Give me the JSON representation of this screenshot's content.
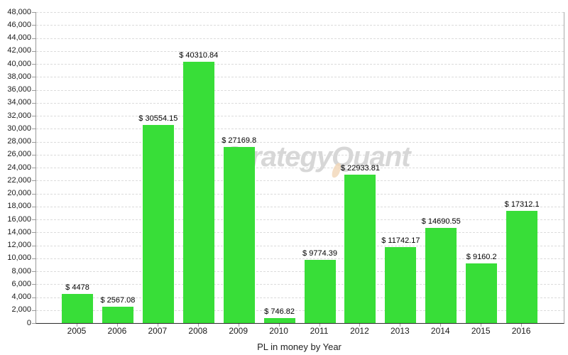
{
  "chart_data": {
    "type": "bar",
    "title": "",
    "xlabel": "PL in money by Year",
    "ylabel": "",
    "categories": [
      "2005",
      "2006",
      "2007",
      "2008",
      "2009",
      "2010",
      "2011",
      "2012",
      "2013",
      "2014",
      "2015",
      "2016"
    ],
    "values": [
      4478,
      2567.08,
      30554.15,
      40310.84,
      27169.8,
      746.82,
      9774.39,
      22933.81,
      11742.17,
      14690.55,
      9160.2,
      17312.1
    ],
    "bar_labels": [
      "$ 4478",
      "$ 2567.08",
      "$ 30554.15",
      "$ 40310.84",
      "$ 27169.8",
      "$ 746.82",
      "$ 9774.39",
      "$ 22933.81",
      "$ 11742.17",
      "$ 14690.55",
      "$ 9160.2",
      "$ 17312.1"
    ],
    "ylim": [
      0,
      48000
    ],
    "ytick_step": 2000,
    "ytick_labels": [
      "0",
      "2,000",
      "4,000",
      "6,000",
      "8,000",
      "10,000",
      "12,000",
      "14,000",
      "16,000",
      "18,000",
      "20,000",
      "22,000",
      "24,000",
      "26,000",
      "28,000",
      "30,000",
      "32,000",
      "34,000",
      "36,000",
      "38,000",
      "40,000",
      "42,000",
      "44,000",
      "46,000",
      "48,000"
    ],
    "grid": "horizontal-dashed",
    "legend": "none",
    "bar_color": "#38DE38",
    "watermark": {
      "text": "StrategyQuant",
      "color": "#D7D7D7",
      "flame_color": "#F2D8BB"
    }
  }
}
